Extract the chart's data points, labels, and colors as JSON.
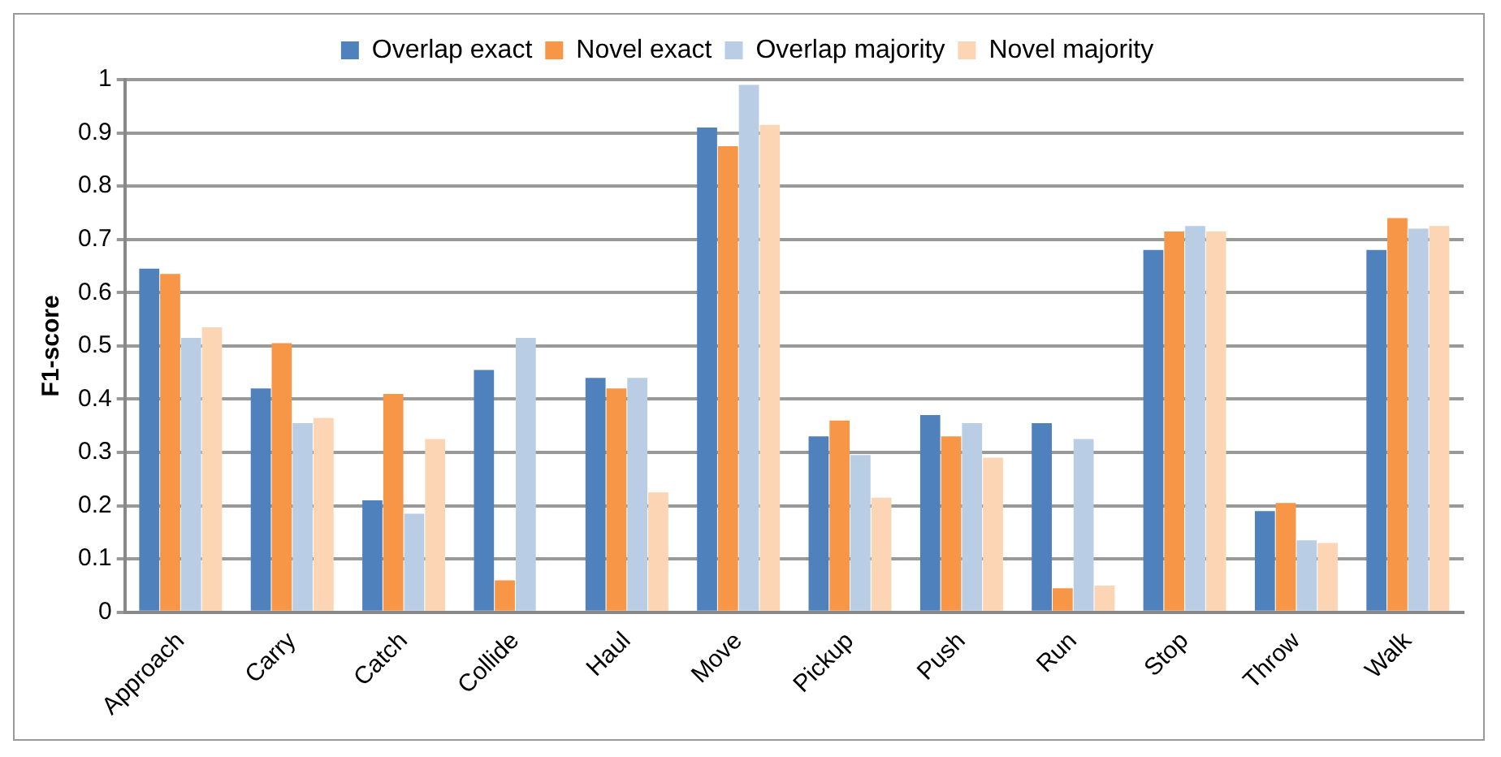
{
  "chart_data": {
    "type": "bar",
    "ylabel": "F1-score",
    "categories": [
      "Approach",
      "Carry",
      "Catch",
      "Collide",
      "Haul",
      "Move",
      "Pickup",
      "Push",
      "Run",
      "Stop",
      "Throw",
      "Walk"
    ],
    "series": [
      {
        "name": "Overlap exact",
        "color": "#4f81bd",
        "values": [
          0.645,
          0.42,
          0.21,
          0.455,
          0.44,
          0.91,
          0.33,
          0.37,
          0.355,
          0.68,
          0.19,
          0.68
        ]
      },
      {
        "name": "Novel exact",
        "color": "#f79646",
        "values": [
          0.635,
          0.505,
          0.41,
          0.06,
          0.42,
          0.875,
          0.36,
          0.33,
          0.045,
          0.715,
          0.205,
          0.74
        ]
      },
      {
        "name": "Overlap majority",
        "color": "#b9cde5",
        "values": [
          0.515,
          0.355,
          0.185,
          0.515,
          0.44,
          0.99,
          0.295,
          0.355,
          0.325,
          0.725,
          0.135,
          0.72
        ]
      },
      {
        "name": "Novel majority",
        "color": "#fcd5b5",
        "values": [
          0.535,
          0.365,
          0.325,
          null,
          0.225,
          0.915,
          0.215,
          0.29,
          0.05,
          0.715,
          0.13,
          0.725
        ]
      }
    ],
    "ylim": [
      0,
      1
    ],
    "yticks": [
      0,
      0.1,
      0.2,
      0.3,
      0.4,
      0.5,
      0.6,
      0.7,
      0.8,
      0.9,
      1
    ],
    "grid": "y",
    "legend": "top"
  }
}
